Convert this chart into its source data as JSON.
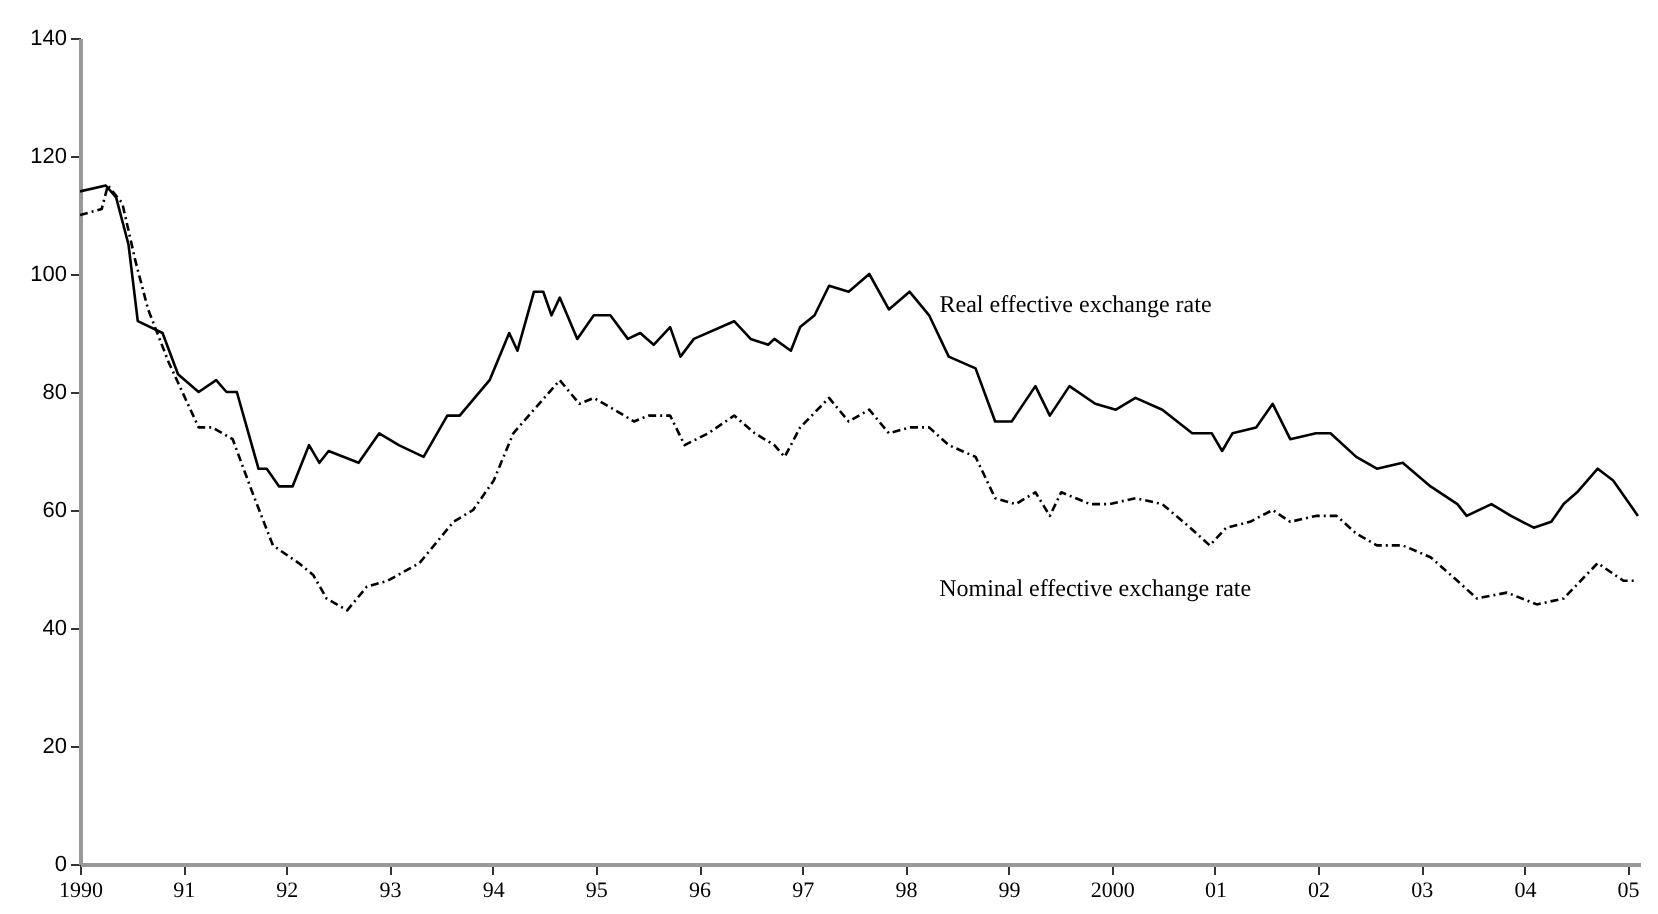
{
  "chart_data": {
    "type": "line",
    "xlim": [
      1990,
      2005.12
    ],
    "ylim": [
      0,
      140
    ],
    "yticks": [
      0,
      20,
      40,
      60,
      80,
      100,
      120,
      140
    ],
    "xticks": [
      {
        "value": 1990,
        "label": "1990"
      },
      {
        "value": 1991,
        "label": "91"
      },
      {
        "value": 1992,
        "label": "92"
      },
      {
        "value": 1993,
        "label": "93"
      },
      {
        "value": 1994,
        "label": "94"
      },
      {
        "value": 1995,
        "label": "95"
      },
      {
        "value": 1996,
        "label": "96"
      },
      {
        "value": 1997,
        "label": "97"
      },
      {
        "value": 1998,
        "label": "98"
      },
      {
        "value": 1999,
        "label": "99"
      },
      {
        "value": 2000,
        "label": "2000"
      },
      {
        "value": 2001,
        "label": "01"
      },
      {
        "value": 2002,
        "label": "02"
      },
      {
        "value": 2003,
        "label": "03"
      },
      {
        "value": 2004,
        "label": "04"
      },
      {
        "value": 2005,
        "label": "05"
      }
    ],
    "grid": false,
    "series": [
      {
        "name": "Real effective exchange rate",
        "color": "#000000",
        "line_style": "solid",
        "x": [
          1990.0,
          1990.25,
          1990.35,
          1990.47,
          1990.56,
          1990.8,
          1990.95,
          1991.15,
          1991.32,
          1991.42,
          1991.52,
          1991.73,
          1991.81,
          1991.93,
          1992.06,
          1992.22,
          1992.32,
          1992.41,
          1992.7,
          1992.9,
          1993.09,
          1993.33,
          1993.56,
          1993.68,
          1993.97,
          1994.16,
          1994.24,
          1994.4,
          1994.49,
          1994.57,
          1994.65,
          1994.82,
          1994.98,
          1995.14,
          1995.31,
          1995.43,
          1995.56,
          1995.72,
          1995.82,
          1995.95,
          1996.34,
          1996.5,
          1996.67,
          1996.73,
          1996.89,
          1996.98,
          1997.12,
          1997.26,
          1997.45,
          1997.65,
          1997.84,
          1998.04,
          1998.23,
          1998.42,
          1998.68,
          1998.87,
          1999.03,
          1999.26,
          1999.4,
          1999.59,
          1999.84,
          2000.04,
          2000.23,
          2000.49,
          2000.78,
          2000.97,
          2001.07,
          2001.17,
          2001.4,
          2001.56,
          2001.73,
          2001.98,
          2002.12,
          2002.37,
          2002.57,
          2002.82,
          2003.09,
          2003.35,
          2003.44,
          2003.68,
          2003.87,
          2004.09,
          2004.26,
          2004.38,
          2004.51,
          2004.71,
          2004.86,
          2005.1
        ],
        "values": [
          114,
          115,
          113,
          105,
          92,
          90,
          83,
          80,
          82,
          80,
          80,
          67,
          67,
          64,
          64,
          71,
          68,
          70,
          68,
          73,
          71,
          69,
          76,
          76,
          82,
          90,
          87,
          97,
          97,
          93,
          96,
          89,
          93,
          93,
          89,
          90,
          88,
          91,
          86,
          89,
          92,
          89,
          88,
          89,
          87,
          91,
          93,
          98,
          97,
          100,
          94,
          97,
          93,
          86,
          84,
          75,
          75,
          81,
          76,
          81,
          78,
          77,
          79,
          77,
          73,
          73,
          70,
          73,
          74,
          78,
          72,
          73,
          73,
          69,
          67,
          68,
          64,
          61,
          59,
          61,
          59,
          57,
          58,
          61,
          63,
          67,
          65,
          59
        ]
      },
      {
        "name": "Nominal effective exchange rate",
        "color": "#000000",
        "line_style": "dashed",
        "x": [
          1990.0,
          1990.21,
          1990.27,
          1990.41,
          1990.54,
          1990.66,
          1990.86,
          1991.15,
          1991.28,
          1991.48,
          1991.67,
          1991.87,
          1992.12,
          1992.26,
          1992.39,
          1992.59,
          1992.78,
          1992.98,
          1993.29,
          1993.62,
          1993.81,
          1994.01,
          1994.2,
          1994.4,
          1994.65,
          1994.84,
          1994.98,
          1995.18,
          1995.37,
          1995.51,
          1995.72,
          1995.86,
          1996.09,
          1996.34,
          1996.54,
          1996.73,
          1996.83,
          1996.98,
          1997.26,
          1997.45,
          1997.65,
          1997.84,
          1998.04,
          1998.23,
          1998.42,
          1998.68,
          1998.87,
          1999.07,
          1999.26,
          1999.4,
          1999.51,
          1999.79,
          1999.98,
          2000.23,
          2000.49,
          2000.76,
          2000.95,
          2001.11,
          2001.34,
          2001.56,
          2001.73,
          2001.98,
          2002.18,
          2002.37,
          2002.57,
          2002.82,
          2003.09,
          2003.35,
          2003.54,
          2003.83,
          2004.12,
          2004.38,
          2004.71,
          2004.96,
          2005.06
        ],
        "values": [
          110,
          111,
          115,
          112,
          102,
          94,
          85,
          74,
          74,
          72,
          63,
          54,
          51,
          49,
          45,
          43,
          47,
          48,
          51,
          58,
          60,
          65,
          73,
          77,
          82,
          78,
          79,
          77,
          75,
          76,
          76,
          71,
          73,
          76,
          73,
          71,
          69,
          74,
          79,
          75,
          77,
          73,
          74,
          74,
          71,
          69,
          62,
          61,
          63,
          59,
          63,
          61,
          61,
          62,
          61,
          57,
          54,
          57,
          58,
          60,
          58,
          59,
          59,
          56,
          54,
          54,
          52,
          48,
          45,
          46,
          44,
          45,
          51,
          48,
          48
        ]
      }
    ]
  }
}
